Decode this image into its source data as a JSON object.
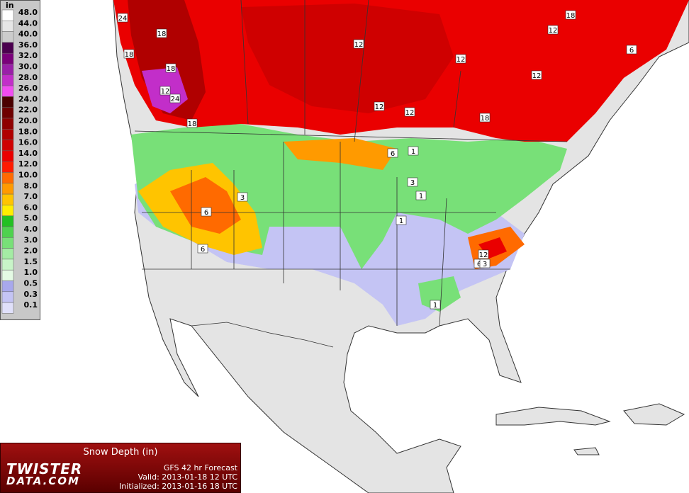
{
  "legend": {
    "unit": "in",
    "items": [
      {
        "label": "48.0",
        "color": "#ffffff"
      },
      {
        "label": "44.0",
        "color": "#e6e6e6"
      },
      {
        "label": "40.0",
        "color": "#cccccc"
      },
      {
        "label": "36.0",
        "color": "#4b004f"
      },
      {
        "label": "32.0",
        "color": "#7a007a"
      },
      {
        "label": "30.0",
        "color": "#9a1fa8"
      },
      {
        "label": "28.0",
        "color": "#c22ec9"
      },
      {
        "label": "26.0",
        "color": "#f04cf0"
      },
      {
        "label": "24.0",
        "color": "#4a0000"
      },
      {
        "label": "22.0",
        "color": "#6e0000"
      },
      {
        "label": "20.0",
        "color": "#8e0000"
      },
      {
        "label": "18.0",
        "color": "#b00000"
      },
      {
        "label": "16.0",
        "color": "#cf0000"
      },
      {
        "label": "14.0",
        "color": "#ea0000"
      },
      {
        "label": "12.0",
        "color": "#ff1a00"
      },
      {
        "label": "10.0",
        "color": "#ff6a00"
      },
      {
        "label": "8.0",
        "color": "#ff9a00"
      },
      {
        "label": "7.0",
        "color": "#ffc400"
      },
      {
        "label": "6.0",
        "color": "#ffee00"
      },
      {
        "label": "5.0",
        "color": "#22c022"
      },
      {
        "label": "4.0",
        "color": "#4ed24e"
      },
      {
        "label": "3.0",
        "color": "#78e078"
      },
      {
        "label": "2.0",
        "color": "#a4eca4"
      },
      {
        "label": "1.5",
        "color": "#c8f4c8"
      },
      {
        "label": "1.0",
        "color": "#e4fae4"
      },
      {
        "label": "0.5",
        "color": "#a8a8ec"
      },
      {
        "label": "0.3",
        "color": "#c4c4f4"
      },
      {
        "label": "0.1",
        "color": "#e0e0fa"
      }
    ]
  },
  "map_labels": [
    "24",
    "18",
    "18",
    "18",
    "12",
    "24",
    "18",
    "12",
    "12",
    "12",
    "12",
    "18",
    "12",
    "12",
    "18",
    "6",
    "6",
    "1",
    "3",
    "1",
    "3",
    "6",
    "6",
    "1",
    "12",
    "6",
    "3",
    "1"
  ],
  "info": {
    "title": "Snow Depth (in)",
    "model": "GFS 42 hr Forecast",
    "valid": "Valid: 2013-01-18 12 UTC",
    "initialized": "Initialized: 2013-01-16 18 UTC",
    "logo_top": "TWISTER",
    "logo_bottom": "DATA.COM"
  }
}
